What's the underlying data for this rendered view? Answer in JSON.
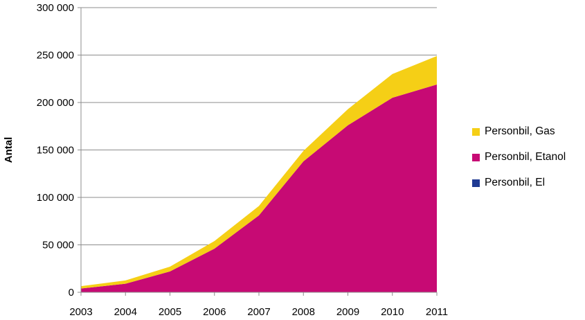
{
  "chart_data": {
    "type": "area",
    "stacked": true,
    "title": "",
    "xlabel": "",
    "ylabel": "Antal",
    "x": [
      "2003",
      "2004",
      "2005",
      "2006",
      "2007",
      "2008",
      "2009",
      "2010",
      "2011"
    ],
    "ylim": [
      0,
      300000
    ],
    "yticks": [
      0,
      50000,
      100000,
      150000,
      200000,
      250000,
      300000
    ],
    "ytick_labels": [
      "0",
      "50 000",
      "100 000",
      "150 000",
      "200 000",
      "250 000",
      "300 000"
    ],
    "grid": "horizontal",
    "legend_position": "right",
    "series": [
      {
        "name": "Personbil, El",
        "color": "#1F3A93",
        "values": [
          0,
          0,
          0,
          0,
          0,
          0,
          0,
          0,
          0
        ]
      },
      {
        "name": "Personbil, Etanol",
        "color": "#C70A74",
        "values": [
          4000,
          9000,
          22000,
          46000,
          81000,
          138000,
          176000,
          205000,
          219000
        ]
      },
      {
        "name": "Personbil, Gas",
        "color": "#F5CF16",
        "values": [
          2500,
          3500,
          5000,
          8000,
          10000,
          11000,
          17000,
          25000,
          30000
        ]
      }
    ]
  },
  "legend": {
    "items": [
      {
        "label": "Personbil, Gas",
        "color": "#F5CF16"
      },
      {
        "label": "Personbil, Etanol",
        "color": "#C70A74"
      },
      {
        "label": "Personbil, El",
        "color": "#1F3A93"
      }
    ]
  }
}
